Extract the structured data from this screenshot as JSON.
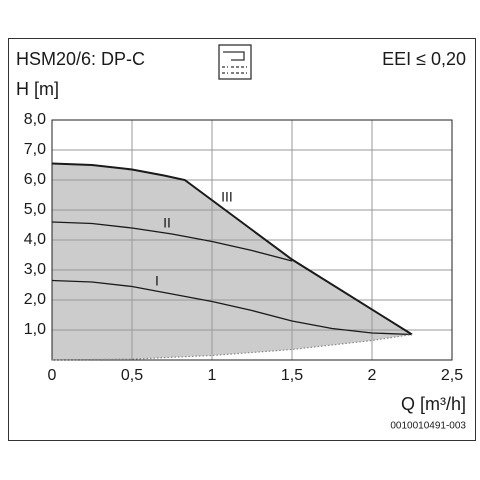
{
  "chart_data": {
    "type": "line",
    "title": "HSM20/6: DP-C",
    "subtitle": "EEI ≤ 0,20",
    "y_label": "H [m]",
    "x_label": "Q [m³/h]",
    "footnote": "0010010491-003",
    "xlim": [
      0,
      2.5
    ],
    "ylim": [
      0,
      8
    ],
    "xticks": [
      0,
      {
        "value": 0.5,
        "label": "0,5"
      },
      1,
      {
        "value": 1.5,
        "label": "1,5"
      },
      2,
      {
        "value": 2.5,
        "label": "2,5"
      }
    ],
    "yticks": [
      {
        "value": 1,
        "label": "1,0"
      },
      {
        "value": 2,
        "label": "2,0"
      },
      {
        "value": 3,
        "label": "3,0"
      },
      {
        "value": 4,
        "label": "4,0"
      },
      {
        "value": 5,
        "label": "5,0"
      },
      {
        "value": 6,
        "label": "6,0"
      },
      {
        "value": 7,
        "label": "7,0"
      },
      {
        "value": 8,
        "label": "8,0"
      }
    ],
    "grid": true,
    "fill_color": "#cccccc",
    "series": [
      {
        "name": "III",
        "color": "#1a1a1a",
        "x": [
          0,
          0.25,
          0.5,
          0.7,
          0.83,
          1.5,
          2.25
        ],
        "values": [
          6.55,
          6.5,
          6.35,
          6.15,
          6.0,
          3.35,
          0.85
        ]
      },
      {
        "name": "II",
        "color": "#1a1a1a",
        "x": [
          0,
          0.25,
          0.5,
          0.75,
          1,
          1.25,
          1.5
        ],
        "values": [
          4.6,
          4.55,
          4.4,
          4.2,
          3.95,
          3.65,
          3.3
        ]
      },
      {
        "name": "I",
        "color": "#1a1a1a",
        "x": [
          0,
          0.25,
          0.5,
          0.75,
          1,
          1.25,
          1.5,
          1.75,
          2,
          2.25
        ],
        "values": [
          2.65,
          2.6,
          2.45,
          2.2,
          1.95,
          1.65,
          1.3,
          1.05,
          0.9,
          0.85
        ]
      },
      {
        "color": "#888888",
        "style": "dotted",
        "x": [
          0,
          0.5,
          1,
          1.5,
          2,
          2.25
        ],
        "values": [
          0,
          0.03,
          0.15,
          0.35,
          0.65,
          0.85
        ]
      }
    ]
  }
}
